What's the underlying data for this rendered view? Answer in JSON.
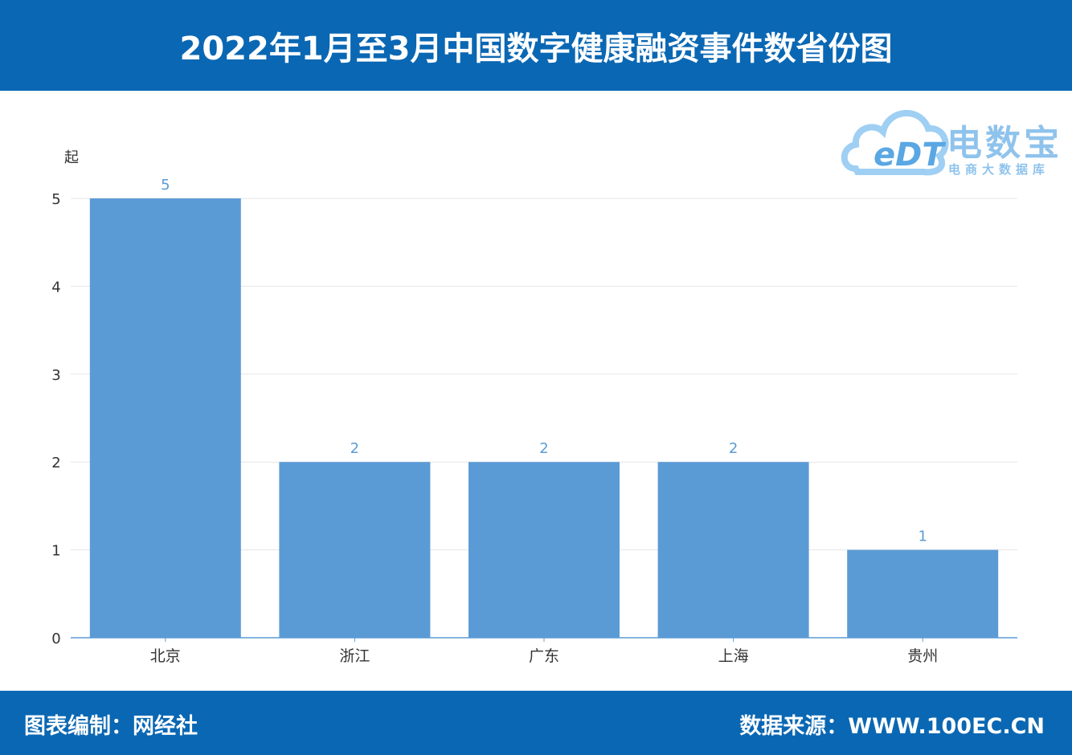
{
  "header": {
    "title": "2022年1月至3月中国数字健康融资事件数省份图"
  },
  "logo": {
    "name": "电数宝",
    "subtitle": "电商大数据库",
    "mark": "eDT"
  },
  "footer": {
    "left": "图表编制：网经社",
    "right": "数据来源：WWW.100EC.CN"
  },
  "colors": {
    "header_bg": "#0a67b3",
    "bar": "#5b9bd5",
    "label": "#5b9bd5"
  },
  "chart_data": {
    "type": "bar",
    "title": "2022年1月至3月中国数字健康融资事件数省份图",
    "ylabel": "起",
    "xlabel": "",
    "categories": [
      "北京",
      "浙江",
      "广东",
      "上海",
      "贵州"
    ],
    "values": [
      5,
      2,
      2,
      2,
      1
    ],
    "ylim": [
      0,
      5
    ],
    "yticks": [
      0,
      1,
      2,
      3,
      4,
      5
    ],
    "grid": true,
    "legend": "none"
  }
}
